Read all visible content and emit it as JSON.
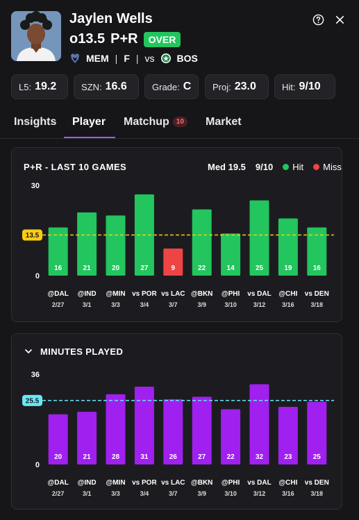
{
  "player": {
    "name": "Jaylen Wells",
    "line": "o13.5",
    "market": "P+R",
    "pick": "OVER",
    "team": "MEM",
    "position": "F",
    "vs": "vs",
    "opponent": "BOS"
  },
  "stats": [
    {
      "label": "L5:",
      "value": "19.2"
    },
    {
      "label": "SZN:",
      "value": "16.6"
    },
    {
      "label": "Grade:",
      "value": "C"
    },
    {
      "label": "Proj:",
      "value": "23.0"
    },
    {
      "label": "Hit:",
      "value": "9/10"
    }
  ],
  "tabs": [
    {
      "label": "Insights"
    },
    {
      "label": "Player",
      "active": true
    },
    {
      "label": "Matchup",
      "badge": "10"
    },
    {
      "label": "Market"
    }
  ],
  "colors": {
    "hit": "#22c55e",
    "miss": "#ef4444",
    "minutes": "#a020f0",
    "line_pr": "#facc15",
    "line_min": "#67e8f9",
    "accent": "#a855f7"
  },
  "icons": [
    "help-icon",
    "close-icon",
    "chevron-down-icon",
    "grizzlies-logo-icon",
    "celtics-logo-icon"
  ],
  "chart_data": [
    {
      "type": "bar",
      "title": "P+R - LAST 10 GAMES",
      "median_label": "Med 19.5",
      "hit_rate": "9/10",
      "legend": [
        "Hit",
        "Miss"
      ],
      "ylim": [
        0,
        30
      ],
      "y_ticks": [
        "30",
        "0"
      ],
      "line": 13.5,
      "line_label": "13.5",
      "categories": [
        "@DAL",
        "@IND",
        "@MIN",
        "vs POR",
        "vs LAC",
        "@BKN",
        "@PHI",
        "vs DAL",
        "@CHI",
        "vs DEN"
      ],
      "dates": [
        "2/27",
        "3/1",
        "3/3",
        "3/4",
        "3/7",
        "3/9",
        "3/10",
        "3/12",
        "3/16",
        "3/18"
      ],
      "values": [
        16,
        21,
        20,
        27,
        9,
        22,
        14,
        25,
        19,
        16
      ],
      "labels": [
        "16",
        "21",
        "20",
        "27",
        "9",
        "22",
        "14",
        "25",
        "19",
        "16"
      ]
    },
    {
      "type": "bar",
      "title": "MINUTES PLAYED",
      "ylim": [
        0,
        36
      ],
      "y_ticks": [
        "36",
        "0"
      ],
      "line": 25.5,
      "line_label": "25.5",
      "categories": [
        "@DAL",
        "@IND",
        "@MIN",
        "vs POR",
        "vs LAC",
        "@BKN",
        "@PHI",
        "vs DAL",
        "@CHI",
        "vs DEN"
      ],
      "dates": [
        "2/27",
        "3/1",
        "3/3",
        "3/4",
        "3/7",
        "3/9",
        "3/10",
        "3/12",
        "3/16",
        "3/18"
      ],
      "values": [
        20,
        21,
        28,
        31,
        26,
        27,
        22,
        32,
        23,
        25
      ],
      "labels": [
        "20",
        "21",
        "28",
        "31",
        "26",
        "27",
        "22",
        "32",
        "23",
        "25"
      ]
    }
  ]
}
